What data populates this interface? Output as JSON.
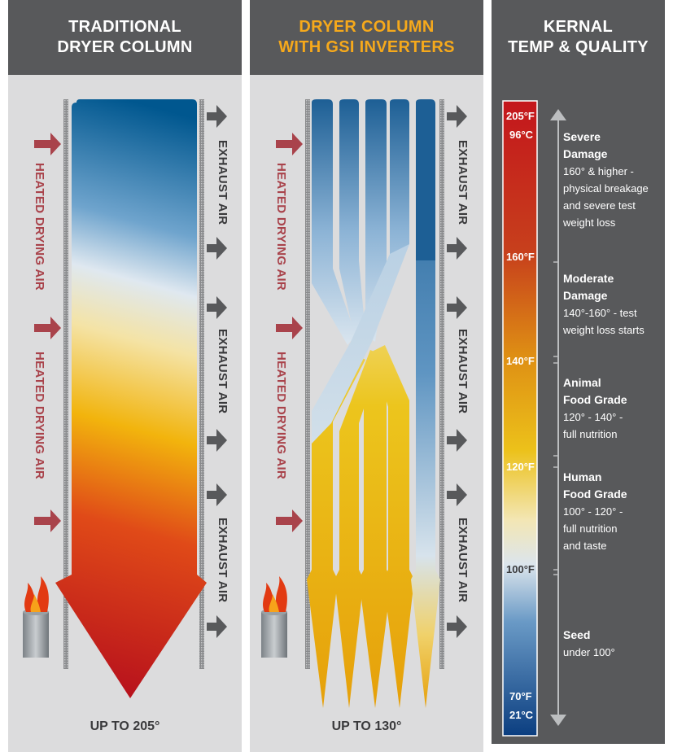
{
  "panels": {
    "traditional": {
      "title_line1": "TRADITIONAL",
      "title_line2": "DRYER COLUMN",
      "bottom": "UP TO 205°"
    },
    "gsi": {
      "title_line1": "DRYER COLUMN",
      "title_line2": "WITH GSI INVERTERS",
      "bottom": "UP TO 130°"
    },
    "kernal": {
      "title_line1": "KERNAL",
      "title_line2": "TEMP & QUALITY"
    }
  },
  "labels": {
    "heated_air": "HEATED DRYING AIR",
    "exhaust_air": "EXHAUST AIR"
  },
  "scale": {
    "top_f": "205°F",
    "top_c": "96°C",
    "t160": "160°F",
    "t140": "140°F",
    "t120": "120°F",
    "t100": "100°F",
    "bottom_f": "70°F",
    "bottom_c": "21°C"
  },
  "quality": {
    "severe": {
      "title1": "Severe",
      "title2": "Damage",
      "lines": [
        "160° & higher -",
        "physical breakage",
        "and severe test",
        "weight loss"
      ]
    },
    "moderate": {
      "title1": "Moderate",
      "title2": "Damage",
      "lines": [
        "140°-160° - test",
        "weight loss starts"
      ]
    },
    "animal": {
      "title1": "Animal",
      "title2": "Food Grade",
      "lines": [
        "120° - 140° -",
        "full nutrition"
      ]
    },
    "human": {
      "title1": "Human",
      "title2": "Food Grade",
      "lines": [
        "100° - 120° -",
        "full nutrition",
        "and taste"
      ]
    },
    "seed": {
      "title1": "Seed",
      "lines": [
        "under 100°"
      ]
    }
  },
  "colors": {
    "header_bg": "#58595b",
    "panel_bg": "#dcdcdd",
    "accent_orange": "#f6a91b",
    "heated_arrow": "#a9434b",
    "exhaust_arrow": "#58595b",
    "hot_red": "#c4161c",
    "warm_yellow": "#e8b90c",
    "cool_blue": "#00578f"
  }
}
